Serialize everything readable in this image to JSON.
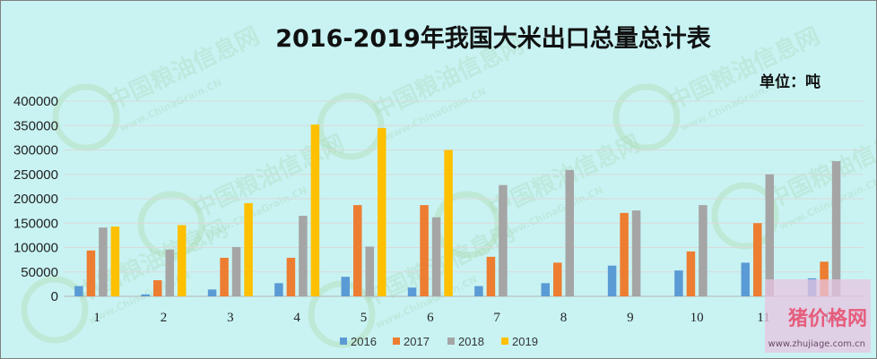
{
  "title": "2016-2019年我国大米出口总量总计表",
  "unit_label": "单位：吨",
  "watermark": {
    "text": "中国粮油信息网",
    "sub": "www.ChinaGrain.CN",
    "site_title": "猪价格网",
    "site_url": "www.zhujiage.com.cn"
  },
  "colors": {
    "2016": "#5b9bd5",
    "2017": "#ed7d31",
    "2018": "#a5a5a5",
    "2019": "#ffc000"
  },
  "chart_data": {
    "type": "bar",
    "title": "2016-2019年我国大米出口总量总计表",
    "xlabel": "",
    "ylabel": "",
    "ylim": [
      0,
      400000
    ],
    "yticks": [
      0,
      50000,
      100000,
      150000,
      200000,
      250000,
      300000,
      350000,
      400000
    ],
    "grid": true,
    "legend": "bottom",
    "categories": [
      "1",
      "2",
      "3",
      "4",
      "5",
      "6",
      "7",
      "8",
      "9",
      "10",
      "11",
      "12"
    ],
    "series": [
      {
        "name": "2016",
        "values": [
          21000,
          4000,
          14000,
          27000,
          40000,
          18000,
          21000,
          27000,
          63000,
          53000,
          69000,
          37000
        ]
      },
      {
        "name": "2017",
        "values": [
          94000,
          33000,
          79000,
          79000,
          187000,
          187000,
          81000,
          69000,
          171000,
          92000,
          150000,
          71000
        ]
      },
      {
        "name": "2018",
        "values": [
          141000,
          96000,
          101000,
          165000,
          102000,
          162000,
          228000,
          259000,
          176000,
          187000,
          250000,
          277000
        ]
      },
      {
        "name": "2019",
        "values": [
          143000,
          146000,
          191000,
          352000,
          345000,
          300000,
          null,
          null,
          null,
          null,
          null,
          null
        ]
      }
    ]
  }
}
